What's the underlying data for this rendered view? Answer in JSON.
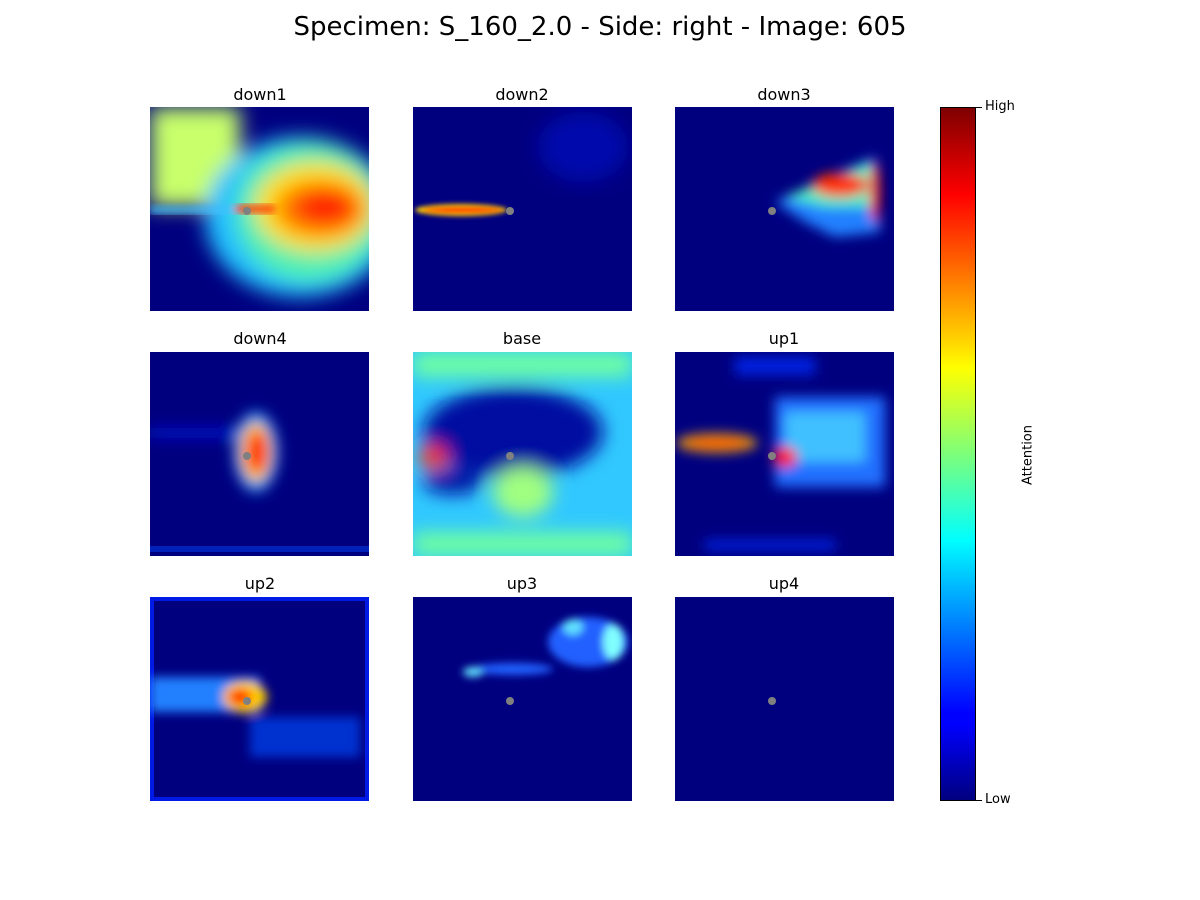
{
  "figure": {
    "title": "Specimen: S_160_2.0 - Side: right - Image: 605"
  },
  "colors": {
    "jet_low": "#00007f",
    "jet_blue": "#0000ff",
    "jet_cyan": "#00ffff",
    "jet_yellow": "#ffff00",
    "jet_red": "#ff0000",
    "jet_high": "#7f0000",
    "marker": "#808080"
  },
  "chart_data": {
    "type": "heatmap",
    "colormap": "jet",
    "panels": [
      {
        "name": "down1",
        "peak": "high",
        "description_color": "broad red/yellow attention right of marker"
      },
      {
        "name": "down2",
        "peak": "high",
        "description_color": "thin red streak left of marker"
      },
      {
        "name": "down3",
        "peak": "high",
        "description_color": "red/yellow wedge upper-right"
      },
      {
        "name": "down4",
        "peak": "high",
        "description_color": "red blob right of marker"
      },
      {
        "name": "base",
        "peak": "high",
        "description_color": "cyan field with red spot at left edge"
      },
      {
        "name": "up1",
        "peak": "high",
        "description_color": "red streak left and red spot right of marker"
      },
      {
        "name": "up2",
        "peak": "high",
        "description_color": "red/yellow near marker, blue field"
      },
      {
        "name": "up3",
        "peak": "low",
        "description_color": "mostly dark blue, faint cyan speckles"
      },
      {
        "name": "up4",
        "peak": "low",
        "description_color": "uniform dark blue"
      }
    ],
    "colorbar": {
      "label": "Attention",
      "tick_labels": [
        "High",
        "Low"
      ]
    }
  }
}
